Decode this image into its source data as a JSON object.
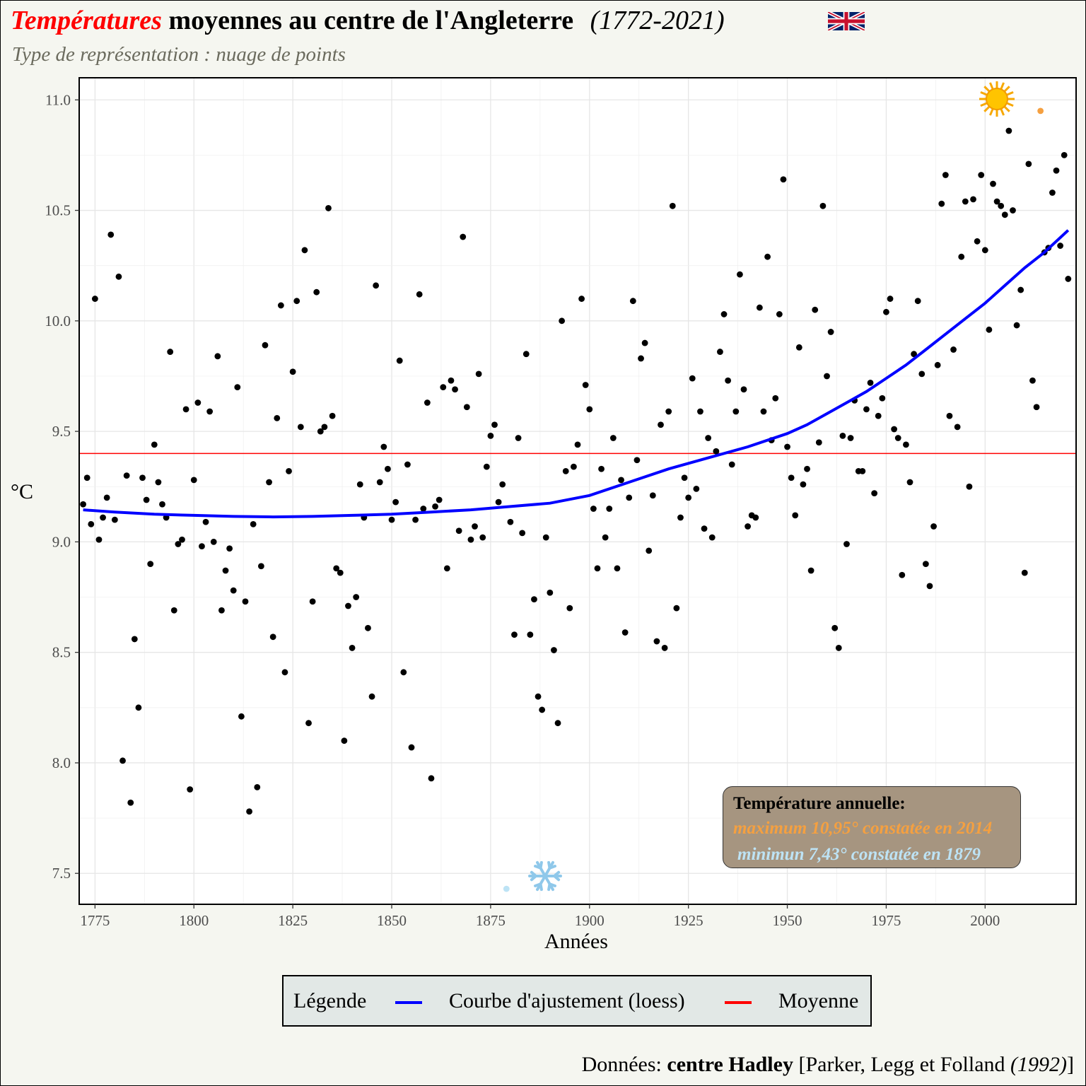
{
  "header": {
    "title_red": "Températures",
    "title_main": "moyennes au centre de l'Angleterre",
    "title_years": "(1772-2021)",
    "flag_icon": "uk-flag-icon",
    "subtitle": "Type de représentation : nuage de points"
  },
  "legend": {
    "title": "Légende",
    "items": [
      {
        "label": "Courbe d'ajustement (loess)",
        "color": "#0000ff"
      },
      {
        "label": "Moyenne",
        "color": "#ff0000"
      }
    ]
  },
  "annotation": {
    "heading": "Température annuelle:",
    "max_text": "maximum 10,95° constatée en 2014",
    "min_text": "minimun 7,43° constatée en 1879",
    "max_color": "#f5a040",
    "min_color": "#bde3f5"
  },
  "icons": {
    "max_marker": "sun-icon",
    "min_marker": "snowflake-icon"
  },
  "source": {
    "prefix": "Données: ",
    "bold": "centre Hadley",
    "ref_open": " [Parker, Legg et Folland ",
    "ref_year": "(1992)",
    "ref_close": "]"
  },
  "chart_data": {
    "type": "scatter",
    "xlabel": "Années",
    "ylabel": "°C",
    "xlim": [
      1771,
      2023
    ],
    "ylim": [
      7.36,
      11.1
    ],
    "xticks": [
      1775,
      1800,
      1825,
      1850,
      1875,
      1900,
      1925,
      1950,
      1975,
      2000
    ],
    "yticks": [
      7.5,
      8.0,
      8.5,
      9.0,
      9.5,
      10.0,
      10.5,
      11.0
    ],
    "ytick_labels": [
      "7.5",
      "8.0",
      "8.5",
      "9.0",
      "9.5",
      "10.0",
      "10.5",
      "11.0"
    ],
    "grid": true,
    "mean": 9.4,
    "mean_color": "#ff0000",
    "loess_color": "#0000ff",
    "max_point": {
      "x": 2014,
      "y": 10.95
    },
    "min_point": {
      "x": 1879,
      "y": 7.43
    },
    "x": [
      1772,
      1773,
      1774,
      1775,
      1776,
      1777,
      1778,
      1779,
      1780,
      1781,
      1782,
      1783,
      1784,
      1785,
      1786,
      1787,
      1788,
      1789,
      1790,
      1791,
      1792,
      1793,
      1794,
      1795,
      1796,
      1797,
      1798,
      1799,
      1800,
      1801,
      1802,
      1803,
      1804,
      1805,
      1806,
      1807,
      1808,
      1809,
      1810,
      1811,
      1812,
      1813,
      1814,
      1815,
      1816,
      1817,
      1818,
      1819,
      1820,
      1821,
      1822,
      1823,
      1824,
      1825,
      1826,
      1827,
      1828,
      1829,
      1830,
      1831,
      1832,
      1833,
      1834,
      1835,
      1836,
      1837,
      1838,
      1839,
      1840,
      1841,
      1842,
      1843,
      1844,
      1845,
      1846,
      1847,
      1848,
      1849,
      1850,
      1851,
      1852,
      1853,
      1854,
      1855,
      1856,
      1857,
      1858,
      1859,
      1860,
      1861,
      1862,
      1863,
      1864,
      1865,
      1866,
      1867,
      1868,
      1869,
      1870,
      1871,
      1872,
      1873,
      1874,
      1875,
      1876,
      1877,
      1878,
      1880,
      1881,
      1882,
      1883,
      1884,
      1885,
      1886,
      1887,
      1888,
      1889,
      1890,
      1891,
      1892,
      1893,
      1894,
      1895,
      1896,
      1897,
      1898,
      1899,
      1900,
      1901,
      1902,
      1903,
      1904,
      1905,
      1906,
      1907,
      1908,
      1909,
      1910,
      1911,
      1912,
      1913,
      1914,
      1915,
      1916,
      1917,
      1918,
      1919,
      1920,
      1921,
      1922,
      1923,
      1924,
      1925,
      1926,
      1927,
      1928,
      1929,
      1930,
      1931,
      1932,
      1933,
      1934,
      1935,
      1936,
      1937,
      1938,
      1939,
      1940,
      1941,
      1942,
      1943,
      1944,
      1945,
      1946,
      1947,
      1948,
      1949,
      1950,
      1951,
      1952,
      1953,
      1954,
      1955,
      1956,
      1957,
      1958,
      1959,
      1960,
      1961,
      1962,
      1963,
      1964,
      1965,
      1966,
      1967,
      1968,
      1969,
      1970,
      1971,
      1972,
      1973,
      1974,
      1975,
      1976,
      1977,
      1978,
      1979,
      1980,
      1981,
      1982,
      1983,
      1984,
      1985,
      1986,
      1987,
      1988,
      1989,
      1990,
      1991,
      1992,
      1993,
      1994,
      1995,
      1996,
      1997,
      1998,
      1999,
      2000,
      2001,
      2002,
      2003,
      2004,
      2005,
      2006,
      2007,
      2008,
      2009,
      2010,
      2011,
      2012,
      2013,
      2015,
      2016,
      2017,
      2018,
      2019,
      2020,
      2021
    ],
    "y": [
      9.17,
      9.29,
      9.08,
      10.1,
      9.01,
      9.11,
      9.2,
      10.39,
      9.1,
      10.2,
      8.01,
      9.3,
      7.82,
      8.56,
      8.25,
      9.29,
      9.19,
      8.9,
      9.44,
      9.27,
      9.17,
      9.11,
      9.86,
      8.69,
      8.99,
      9.01,
      9.6,
      7.88,
      9.28,
      9.63,
      8.98,
      9.09,
      9.59,
      9.0,
      9.84,
      8.69,
      8.87,
      8.97,
      8.78,
      9.7,
      8.21,
      8.73,
      7.78,
      9.08,
      7.89,
      8.89,
      9.89,
      9.27,
      8.57,
      9.56,
      10.07,
      8.41,
      9.32,
      9.77,
      10.09,
      9.52,
      10.32,
      8.18,
      8.73,
      10.13,
      9.5,
      9.52,
      10.51,
      9.57,
      8.88,
      8.86,
      8.1,
      8.71,
      8.52,
      8.75,
      9.26,
      9.11,
      8.61,
      8.3,
      10.16,
      9.27,
      9.43,
      9.33,
      9.1,
      9.18,
      9.82,
      8.41,
      9.35,
      8.07,
      9.1,
      10.12,
      9.15,
      9.63,
      7.93,
      9.16,
      9.19,
      9.7,
      8.88,
      9.73,
      9.69,
      9.05,
      10.38,
      9.61,
      9.01,
      9.07,
      9.76,
      9.02,
      9.34,
      9.48,
      9.53,
      9.18,
      9.26,
      9.09,
      8.58,
      9.47,
      9.04,
      9.85,
      8.58,
      8.74,
      8.3,
      8.24,
      9.02,
      8.77,
      8.51,
      8.18,
      10.0,
      9.32,
      8.7,
      9.34,
      9.44,
      10.1,
      9.71,
      9.6,
      9.15,
      8.88,
      9.33,
      9.02,
      9.15,
      9.47,
      8.88,
      9.28,
      8.59,
      9.2,
      10.09,
      9.37,
      9.83,
      9.9,
      8.96,
      9.21,
      8.55,
      9.53,
      8.52,
      9.59,
      10.52,
      8.7,
      9.11,
      9.29,
      9.2,
      9.74,
      9.24,
      9.59,
      9.06,
      9.47,
      9.02,
      9.41,
      9.86,
      10.03,
      9.73,
      9.35,
      9.59,
      10.21,
      9.69,
      9.07,
      9.12,
      9.11,
      10.06,
      9.59,
      10.29,
      9.46,
      9.65,
      10.03,
      10.64,
      9.43,
      9.29,
      9.12,
      9.88,
      9.26,
      9.33,
      8.87,
      10.05,
      9.45,
      10.52,
      9.75,
      9.95,
      8.61,
      8.52,
      9.48,
      8.99,
      9.47,
      9.64,
      9.32,
      9.32,
      9.6,
      9.72,
      9.22,
      9.57,
      9.65,
      10.04,
      10.1,
      9.51,
      9.47,
      8.85,
      9.44,
      9.27,
      9.85,
      10.09,
      9.76,
      8.9,
      8.8,
      9.07,
      9.8,
      10.53,
      10.66,
      9.57,
      9.87,
      9.52,
      10.29,
      10.54,
      9.25,
      10.55,
      10.36,
      10.66,
      10.32,
      9.96,
      10.62,
      10.54,
      10.52,
      10.48,
      10.86,
      10.5,
      9.98,
      10.14,
      8.86,
      10.71,
      9.73,
      9.61,
      10.31,
      10.33,
      10.58,
      10.68,
      10.34,
      10.75,
      10.19
    ],
    "loess": {
      "x": [
        1772,
        1780,
        1790,
        1800,
        1810,
        1820,
        1830,
        1840,
        1850,
        1860,
        1870,
        1880,
        1890,
        1900,
        1910,
        1920,
        1930,
        1940,
        1950,
        1955,
        1960,
        1965,
        1970,
        1975,
        1980,
        1985,
        1990,
        1995,
        2000,
        2005,
        2010,
        2015,
        2021
      ],
      "y": [
        9.145,
        9.135,
        9.125,
        9.12,
        9.115,
        9.113,
        9.115,
        9.12,
        9.125,
        9.135,
        9.145,
        9.16,
        9.175,
        9.21,
        9.27,
        9.33,
        9.38,
        9.43,
        9.49,
        9.53,
        9.58,
        9.63,
        9.68,
        9.74,
        9.8,
        9.87,
        9.94,
        10.01,
        10.08,
        10.16,
        10.24,
        10.31,
        10.41
      ]
    }
  }
}
